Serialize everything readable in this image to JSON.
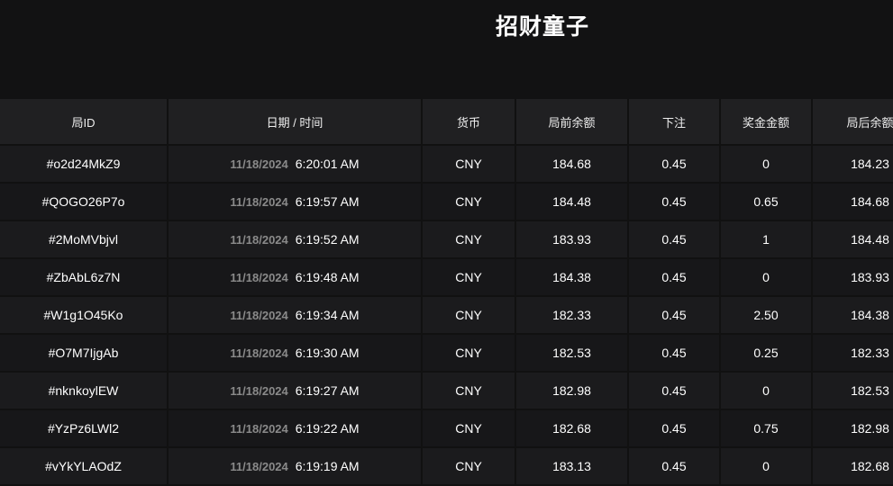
{
  "title": "招财童子",
  "columns": [
    "局ID",
    "日期 / 时间",
    "货币",
    "局前余额",
    "下注",
    "奖金金额",
    "局后余额"
  ],
  "rows": [
    {
      "id": "#o2d24MkZ9",
      "date": "11/18/2024",
      "time": "6:20:01 AM",
      "currency": "CNY",
      "before": "184.68",
      "bet": "0.45",
      "win": "0",
      "after": "184.23"
    },
    {
      "id": "#QOGO26P7o",
      "date": "11/18/2024",
      "time": "6:19:57 AM",
      "currency": "CNY",
      "before": "184.48",
      "bet": "0.45",
      "win": "0.65",
      "after": "184.68"
    },
    {
      "id": "#2MoMVbjvl",
      "date": "11/18/2024",
      "time": "6:19:52 AM",
      "currency": "CNY",
      "before": "183.93",
      "bet": "0.45",
      "win": "1",
      "after": "184.48"
    },
    {
      "id": "#ZbAbL6z7N",
      "date": "11/18/2024",
      "time": "6:19:48 AM",
      "currency": "CNY",
      "before": "184.38",
      "bet": "0.45",
      "win": "0",
      "after": "183.93"
    },
    {
      "id": "#W1g1O45Ko",
      "date": "11/18/2024",
      "time": "6:19:34 AM",
      "currency": "CNY",
      "before": "182.33",
      "bet": "0.45",
      "win": "2.50",
      "after": "184.38"
    },
    {
      "id": "#O7M7IjgAb",
      "date": "11/18/2024",
      "time": "6:19:30 AM",
      "currency": "CNY",
      "before": "182.53",
      "bet": "0.45",
      "win": "0.25",
      "after": "182.33"
    },
    {
      "id": "#nknkoylEW",
      "date": "11/18/2024",
      "time": "6:19:27 AM",
      "currency": "CNY",
      "before": "182.98",
      "bet": "0.45",
      "win": "0",
      "after": "182.53"
    },
    {
      "id": "#YzPz6LWl2",
      "date": "11/18/2024",
      "time": "6:19:22 AM",
      "currency": "CNY",
      "before": "182.68",
      "bet": "0.45",
      "win": "0.75",
      "after": "182.98"
    },
    {
      "id": "#vYkYLAOdZ",
      "date": "11/18/2024",
      "time": "6:19:19 AM",
      "currency": "CNY",
      "before": "183.13",
      "bet": "0.45",
      "win": "0",
      "after": "182.68"
    }
  ]
}
